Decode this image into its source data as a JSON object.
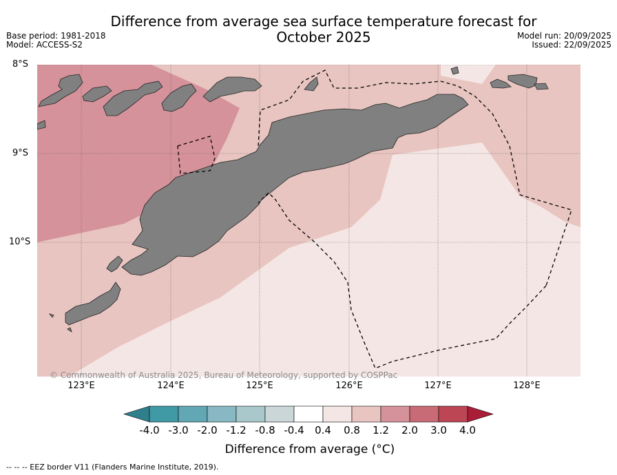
{
  "title_line1": "Difference from average sea surface temperature forecast for",
  "title_line2": "October 2025",
  "meta_left": {
    "base_period": "Base period: 1981-2018",
    "model": "Model: ACCESS-S2"
  },
  "meta_right": {
    "model_run": "Model run: 20/09/2025",
    "issued": "Issued: 22/09/2025"
  },
  "lat_labels": [
    "8°S",
    "9°S",
    "10°S"
  ],
  "lon_labels": [
    "123°E",
    "124°E",
    "125°E",
    "126°E",
    "127°E",
    "128°E"
  ],
  "copyright": "© Commonwealth of Australia 2025, Bureau of Meteorology, supported by COSPPac",
  "colorbar": {
    "ticks": [
      "-4.0",
      "-3.0",
      "-2.0",
      "-1.2",
      "-0.8",
      "-0.4",
      "0.4",
      "0.8",
      "1.2",
      "2.0",
      "3.0",
      "4.0"
    ],
    "colors": [
      "#3f9aa6",
      "#61a7b4",
      "#88b8c3",
      "#a9c8cc",
      "#cbd6d8",
      "#ffffff",
      "#f4e6e4",
      "#e8c5c1",
      "#d6929a",
      "#c86b77",
      "#bd4654",
      "#a91d36"
    ],
    "under_color": "#2f7f8c",
    "label": "Difference from average (°C)"
  },
  "legend_note": "--  --  -- EEZ border V11 (Flanders Marine Institute, 2019).",
  "map_colors": {
    "band_0_4": "#f4e6e4",
    "band_0_8": "#e8c5c1",
    "band_1_2": "#d6929a",
    "land": "#808080"
  }
}
